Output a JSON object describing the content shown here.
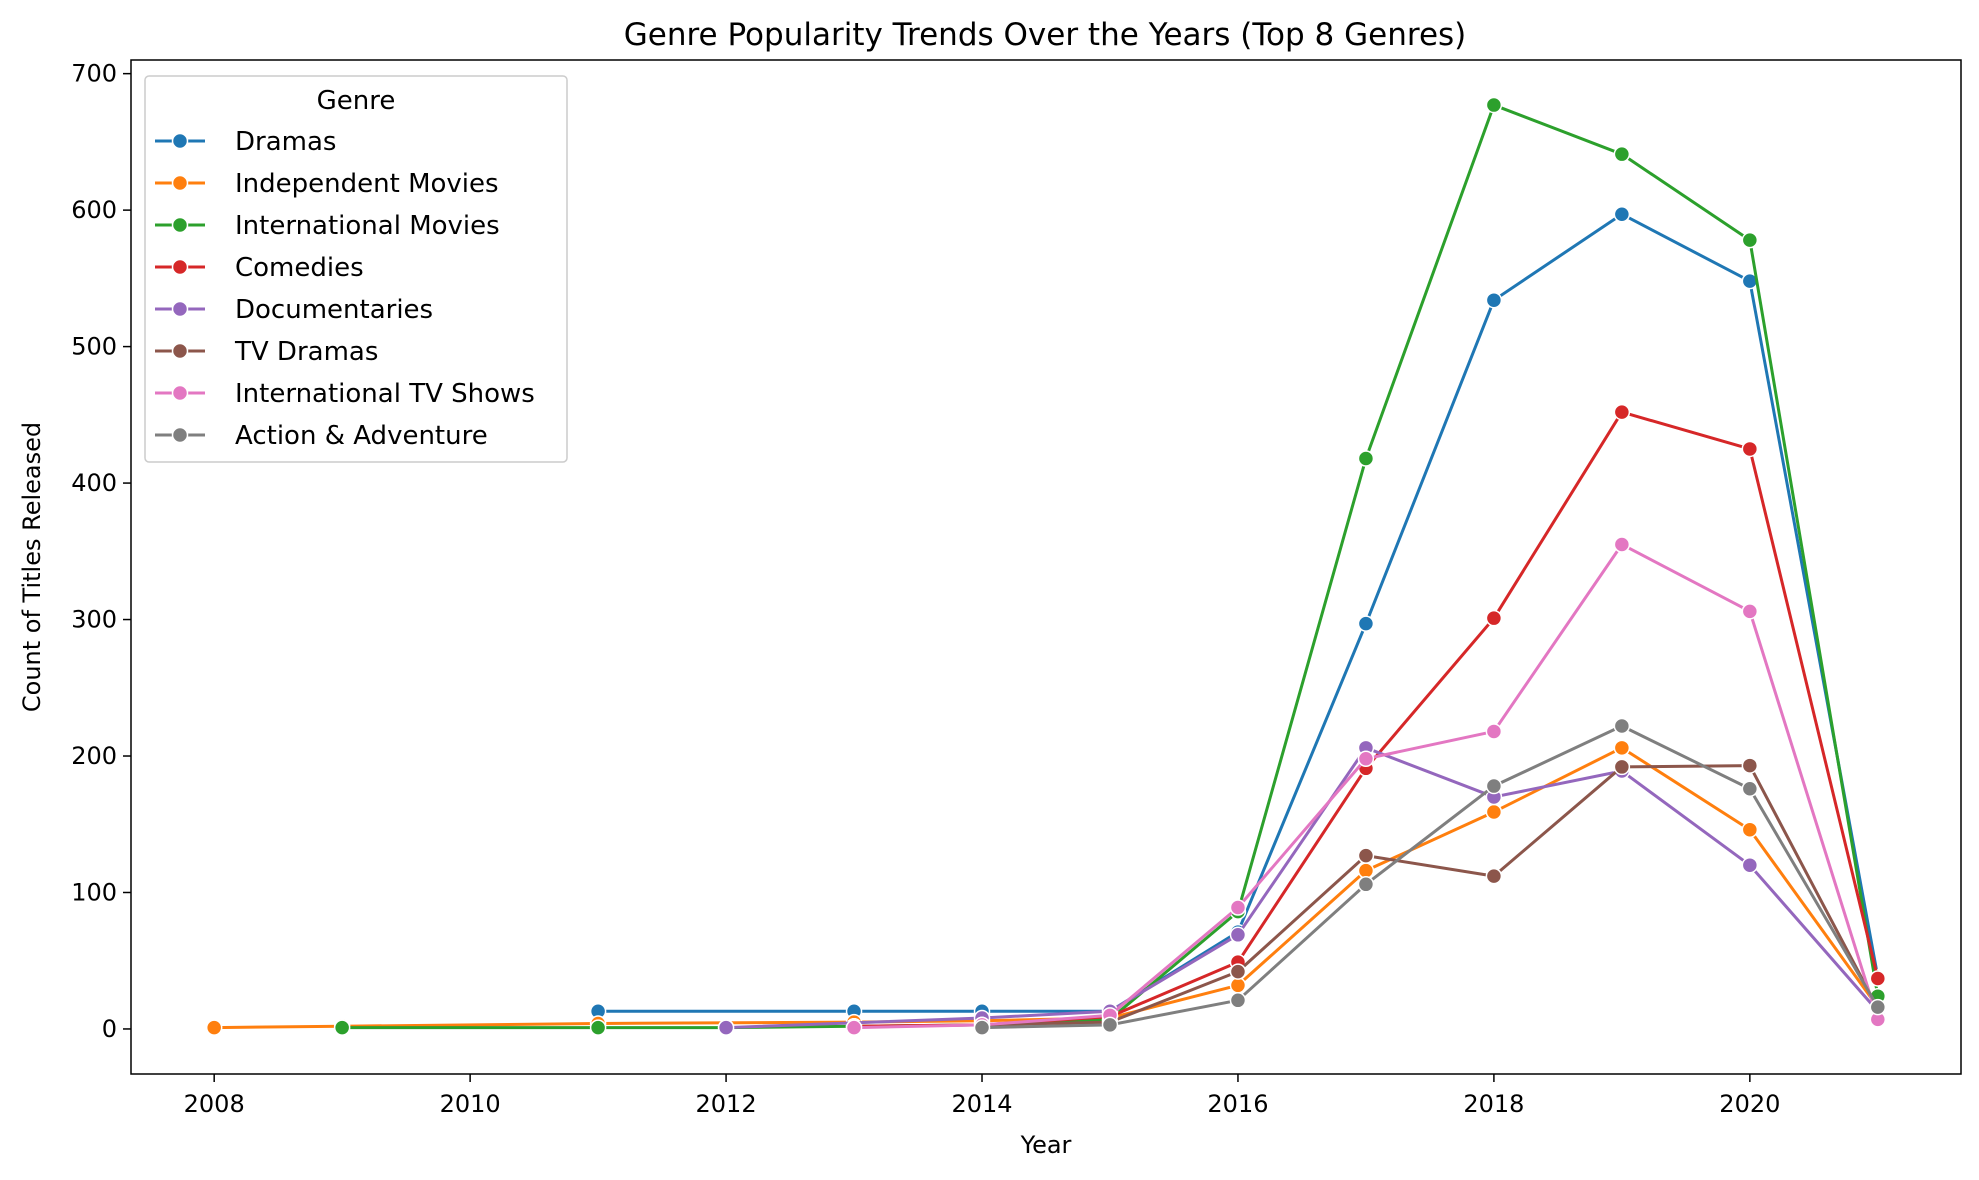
{
  "chart_data": {
    "type": "line",
    "title": "Genre Popularity Trends Over the Years (Top 8 Genres)",
    "xlabel": "Year",
    "ylabel": "Count of Titles Released",
    "xlim": [
      2007.35,
      2021.65
    ],
    "ylim": [
      -33,
      710
    ],
    "xticks": [
      2008,
      2010,
      2012,
      2014,
      2016,
      2018,
      2020
    ],
    "yticks": [
      0,
      100,
      200,
      300,
      400,
      500,
      600,
      700
    ],
    "grid": false,
    "legend": {
      "title": "Genre",
      "placement": "top-left"
    },
    "series": [
      {
        "name": "Dramas",
        "color": "#1f77b4",
        "points": [
          [
            2011,
            13
          ],
          [
            2013,
            13
          ],
          [
            2014,
            13
          ],
          [
            2015,
            13
          ],
          [
            2016,
            71
          ],
          [
            2017,
            297
          ],
          [
            2018,
            534
          ],
          [
            2019,
            597
          ],
          [
            2020,
            548
          ],
          [
            2021,
            38
          ]
        ]
      },
      {
        "name": "Independent Movies",
        "color": "#ff7f0e",
        "points": [
          [
            2008,
            1
          ],
          [
            2009,
            2
          ],
          [
            2011,
            4
          ],
          [
            2013,
            5
          ],
          [
            2014,
            6
          ],
          [
            2015,
            8
          ],
          [
            2016,
            32
          ],
          [
            2017,
            116
          ],
          [
            2018,
            159
          ],
          [
            2019,
            206
          ],
          [
            2020,
            146
          ],
          [
            2021,
            16
          ]
        ]
      },
      {
        "name": "International Movies",
        "color": "#2ca02c",
        "points": [
          [
            2009,
            1
          ],
          [
            2011,
            1
          ],
          [
            2012,
            1
          ],
          [
            2013,
            2
          ],
          [
            2014,
            3
          ],
          [
            2015,
            7
          ],
          [
            2016,
            86
          ],
          [
            2017,
            418
          ],
          [
            2018,
            677
          ],
          [
            2019,
            641
          ],
          [
            2020,
            578
          ],
          [
            2021,
            24
          ]
        ]
      },
      {
        "name": "Comedies",
        "color": "#d62728",
        "points": [
          [
            2013,
            2
          ],
          [
            2014,
            3
          ],
          [
            2015,
            9
          ],
          [
            2016,
            49
          ],
          [
            2017,
            191
          ],
          [
            2018,
            301
          ],
          [
            2019,
            452
          ],
          [
            2020,
            425
          ],
          [
            2021,
            37
          ]
        ]
      },
      {
        "name": "Documentaries",
        "color": "#9467bd",
        "points": [
          [
            2012,
            1
          ],
          [
            2014,
            8
          ],
          [
            2015,
            13
          ],
          [
            2016,
            69
          ],
          [
            2017,
            206
          ],
          [
            2018,
            170
          ],
          [
            2019,
            189
          ],
          [
            2020,
            120
          ],
          [
            2021,
            13
          ]
        ]
      },
      {
        "name": "TV Dramas",
        "color": "#8c564b",
        "points": [
          [
            2014,
            3
          ],
          [
            2015,
            5
          ],
          [
            2016,
            42
          ],
          [
            2017,
            127
          ],
          [
            2018,
            112
          ],
          [
            2019,
            192
          ],
          [
            2020,
            193
          ],
          [
            2021,
            15
          ]
        ]
      },
      {
        "name": "International TV Shows",
        "color": "#e377c2",
        "points": [
          [
            2013,
            1
          ],
          [
            2014,
            3
          ],
          [
            2015,
            10
          ],
          [
            2016,
            89
          ],
          [
            2017,
            198
          ],
          [
            2018,
            218
          ],
          [
            2019,
            355
          ],
          [
            2020,
            306
          ],
          [
            2021,
            7
          ]
        ]
      },
      {
        "name": "Action & Adventure",
        "color": "#7f7f7f",
        "points": [
          [
            2014,
            1
          ],
          [
            2015,
            3
          ],
          [
            2016,
            21
          ],
          [
            2017,
            106
          ],
          [
            2018,
            178
          ],
          [
            2019,
            222
          ],
          [
            2020,
            176
          ],
          [
            2021,
            16
          ]
        ]
      }
    ]
  }
}
